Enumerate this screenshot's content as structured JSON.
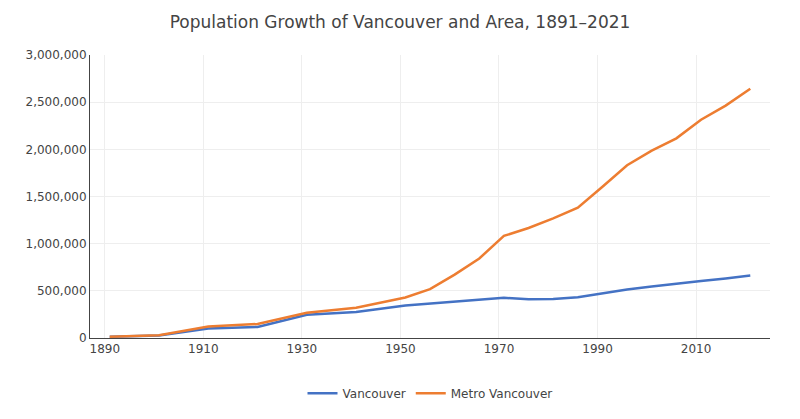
{
  "chart_data": {
    "type": "line",
    "title": "Population Growth of Vancouver and Area, 1891–2021",
    "x": [
      1891,
      1901,
      1911,
      1921,
      1931,
      1941,
      1951,
      1956,
      1961,
      1966,
      1971,
      1976,
      1981,
      1986,
      1991,
      1996,
      2001,
      2006,
      2011,
      2016,
      2021
    ],
    "series": [
      {
        "name": "Vancouver",
        "color": "#4472c4",
        "values": [
          13709,
          27010,
          100401,
          117217,
          246593,
          275353,
          344833,
          365844,
          384522,
          410375,
          426256,
          410188,
          414281,
          431147,
          471844,
          514008,
          545671,
          578041,
          603502,
          631486,
          662248
        ]
      },
      {
        "name": "Metro Vancouver",
        "color": "#ed7d31",
        "values": [
          14000,
          29000,
          120847,
          148000,
          268000,
          320000,
          430000,
          518000,
          672000,
          843000,
          1082352,
          1166348,
          1268183,
          1380729,
          1602590,
          1831665,
          1986965,
          2116581,
          2313328,
          2463431,
          2642825
        ]
      }
    ],
    "xlim": [
      1887,
      2025
    ],
    "ylim": [
      0,
      3000000
    ],
    "xticks": [
      1890,
      1910,
      1930,
      1950,
      1970,
      1990,
      2010
    ],
    "yticks": [
      {
        "value": 0,
        "label": "0"
      },
      {
        "value": 500000,
        "label": "500,000"
      },
      {
        "value": 1000000,
        "label": "1,000,000"
      },
      {
        "value": 1500000,
        "label": "1,500,000"
      },
      {
        "value": 2000000,
        "label": "2,000,000"
      },
      {
        "value": 2500000,
        "label": "2,500,000"
      },
      {
        "value": 3000000,
        "label": "3,000,000"
      }
    ],
    "grid": true,
    "legend": "bottom"
  }
}
